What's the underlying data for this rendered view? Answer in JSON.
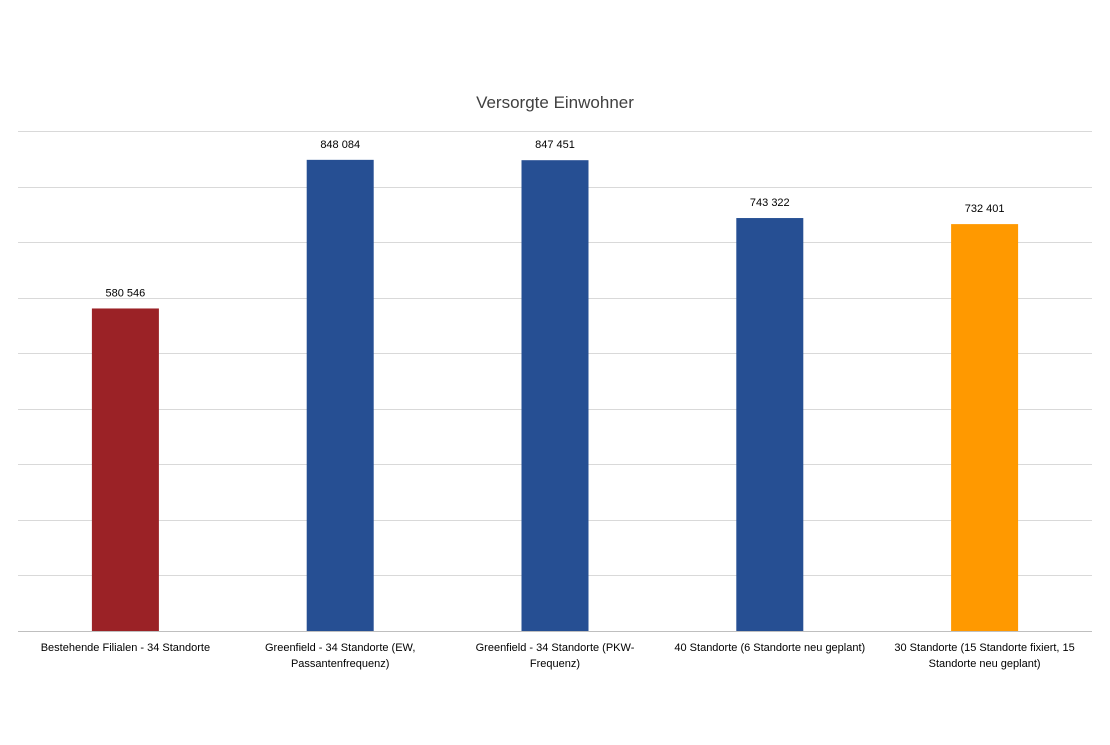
{
  "chart_data": {
    "type": "bar",
    "title": "Versorgte Einwohner",
    "xlabel": "",
    "ylabel": "",
    "ylim": [
      0,
      900000
    ],
    "ytick_step": 100000,
    "grid": true,
    "legend": "none",
    "categories": [
      [
        "Bestehende Filialen - 34 Standorte"
      ],
      [
        "Greenfield - 34 Standorte (EW,",
        "Passantenfrequenz)"
      ],
      [
        "Greenfield - 34 Standorte (PKW-",
        "Frequenz)"
      ],
      [
        "40 Standorte (6 Standorte neu geplant)"
      ],
      [
        "30 Standorte (15 Standorte fixiert, 15",
        "Standorte neu geplant)"
      ]
    ],
    "values": [
      580546,
      848084,
      847451,
      743322,
      732401
    ],
    "value_labels": [
      "580 546",
      "848 084",
      "847 451",
      "743 322",
      "732 401"
    ],
    "colors": [
      "#9b2226",
      "#264f93",
      "#264f93",
      "#264f93",
      "#ff9900"
    ]
  }
}
